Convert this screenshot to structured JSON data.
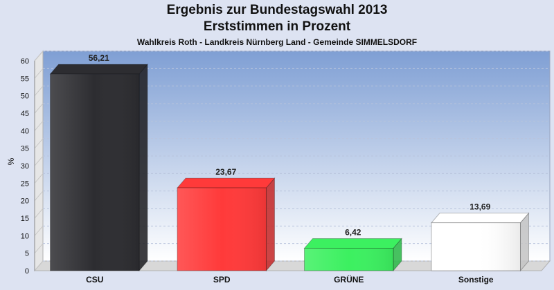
{
  "colors": {
    "background": "#dde3f2",
    "plot_top": "#7f9fd4",
    "plot_bottom": "#ffffff",
    "CSU": "#2d2d31",
    "SPD": "#ff3a3a",
    "GRÜNE": "#3cf060",
    "Sonstige": "#ffffff"
  },
  "chart_data": {
    "type": "bar",
    "title": "Ergebnis zur Bundestagswahl 2013",
    "subtitle": "Erststimmen in Prozent",
    "subsubtitle": "Wahlkreis Roth - Landkreis Nürnberg Land - Gemeinde SIMMELSDORF",
    "xlabel": "",
    "ylabel": "%",
    "ylim": [
      0,
      60
    ],
    "ytick_step": 5,
    "grid": true,
    "categories": [
      "CSU",
      "SPD",
      "GRÜNE",
      "Sonstige"
    ],
    "values": [
      56.21,
      23.67,
      6.42,
      13.69
    ],
    "value_labels": [
      "56,21",
      "23,67",
      "6,42",
      "13,69"
    ]
  }
}
